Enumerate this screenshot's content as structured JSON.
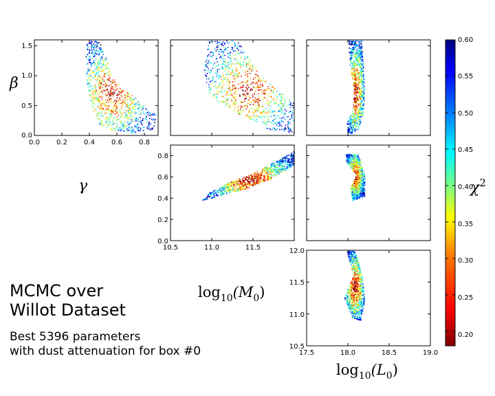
{
  "title_lines": [
    "MCMC over",
    "Willot Dataset"
  ],
  "subtitle_lines": [
    "Best 5396 parameters",
    "with dust attenuation for box #0"
  ],
  "chart_data": [
    {
      "type": "scatter",
      "panel": "beta_vs_gamma",
      "x_param": "gamma",
      "y_param": "beta",
      "xlim": [
        0.0,
        0.9
      ],
      "ylim": [
        0.0,
        1.6
      ],
      "xticks": [
        "0.0",
        "0.2",
        "0.4",
        "0.6",
        "0.8"
      ],
      "yticks": [
        "0.0",
        "0.5",
        "1.0",
        "1.5"
      ],
      "ylabel": "β",
      "xlabel": "γ",
      "cloud": {
        "path": [
          [
            0.38,
            1.6
          ],
          [
            0.47,
            1.6
          ],
          [
            0.52,
            1.3
          ],
          [
            0.56,
            1.0
          ],
          [
            0.62,
            0.85
          ],
          [
            0.75,
            0.6
          ],
          [
            0.88,
            0.35
          ],
          [
            0.87,
            0.1
          ],
          [
            0.72,
            0.05
          ],
          [
            0.55,
            0.1
          ],
          [
            0.47,
            0.2
          ],
          [
            0.42,
            0.45
          ],
          [
            0.38,
            0.8
          ],
          [
            0.37,
            1.2
          ]
        ]
      },
      "approx_points": 5396
    },
    {
      "type": "scatter",
      "panel": "beta_vs_log10M0",
      "x_param": "log10_M0",
      "y_param": "beta",
      "xlim": [
        10.5,
        12.0
      ],
      "ylim": [
        0.0,
        1.6
      ],
      "cloud": {
        "path": [
          [
            10.95,
            1.6
          ],
          [
            11.3,
            1.6
          ],
          [
            11.6,
            1.0
          ],
          [
            11.8,
            0.75
          ],
          [
            12.0,
            0.55
          ],
          [
            12.0,
            0.05
          ],
          [
            11.7,
            0.1
          ],
          [
            11.4,
            0.3
          ],
          [
            11.2,
            0.45
          ],
          [
            10.95,
            0.7
          ],
          [
            10.9,
            1.1
          ]
        ]
      },
      "approx_points": 5396
    },
    {
      "type": "scatter",
      "panel": "beta_vs_log10L0",
      "x_param": "log10_L0",
      "y_param": "beta",
      "xlim": [
        17.5,
        19.0
      ],
      "ylim": [
        0.0,
        1.6
      ],
      "cloud": {
        "path": [
          [
            18.0,
            1.6
          ],
          [
            18.17,
            1.6
          ],
          [
            18.18,
            1.2
          ],
          [
            18.2,
            0.75
          ],
          [
            18.18,
            0.35
          ],
          [
            18.12,
            0.1
          ],
          [
            18.0,
            0.0
          ],
          [
            17.98,
            0.2
          ],
          [
            18.06,
            0.45
          ],
          [
            18.07,
            0.8
          ],
          [
            18.02,
            1.2
          ]
        ]
      },
      "approx_points": 5396
    },
    {
      "type": "scatter",
      "panel": "gamma_vs_log10M0",
      "x_param": "log10_M0",
      "y_param": "gamma",
      "xlim": [
        10.5,
        12.0
      ],
      "ylim": [
        0.0,
        0.9
      ],
      "xticks": [
        "10.5",
        "11.0",
        "11.5"
      ],
      "yticks": [
        "0.0",
        "0.2",
        "0.4",
        "0.6",
        "0.8"
      ],
      "xlabel": "log10(M0)",
      "cloud": {
        "path": [
          [
            10.88,
            0.38
          ],
          [
            11.1,
            0.43
          ],
          [
            11.4,
            0.49
          ],
          [
            11.7,
            0.58
          ],
          [
            12.0,
            0.72
          ],
          [
            12.0,
            0.85
          ],
          [
            11.8,
            0.76
          ],
          [
            11.5,
            0.64
          ],
          [
            11.2,
            0.55
          ],
          [
            10.95,
            0.45
          ]
        ]
      },
      "approx_points": 5396
    },
    {
      "type": "scatter",
      "panel": "gamma_vs_log10L0",
      "x_param": "log10_L0",
      "y_param": "gamma",
      "xlim": [
        17.5,
        19.0
      ],
      "ylim": [
        0.0,
        0.9
      ],
      "cloud": {
        "path": [
          [
            17.97,
            0.82
          ],
          [
            18.12,
            0.82
          ],
          [
            18.2,
            0.62
          ],
          [
            18.2,
            0.42
          ],
          [
            18.05,
            0.38
          ],
          [
            18.03,
            0.5
          ],
          [
            18.1,
            0.62
          ],
          [
            17.98,
            0.74
          ]
        ]
      },
      "approx_points": 5396
    },
    {
      "type": "scatter",
      "panel": "log10M0_vs_log10L0",
      "x_param": "log10_L0",
      "y_param": "log10_M0",
      "xlim": [
        17.5,
        19.0
      ],
      "ylim": [
        10.5,
        12.0
      ],
      "xticks": [
        "17.5",
        "18.0",
        "18.5",
        "19.0"
      ],
      "yticks": [
        "10.5",
        "11.0",
        "11.5",
        "12.0"
      ],
      "xlabel": "log10(L0)",
      "cloud": {
        "path": [
          [
            17.98,
            12.0
          ],
          [
            18.08,
            12.0
          ],
          [
            18.17,
            11.6
          ],
          [
            18.2,
            11.2
          ],
          [
            18.15,
            10.9
          ],
          [
            18.05,
            10.95
          ],
          [
            17.95,
            11.25
          ],
          [
            18.06,
            11.6
          ]
        ]
      },
      "approx_points": 5396
    }
  ],
  "colorbar": {
    "label": "χ",
    "label_exp": "2",
    "min": 0.18,
    "max": 0.6,
    "ticks": [
      "0.20",
      "0.25",
      "0.30",
      "0.35",
      "0.40",
      "0.45",
      "0.50",
      "0.55",
      "0.60"
    ],
    "colormap": "jet",
    "stops": [
      "#7f0000",
      "#ff0000",
      "#ff7f00",
      "#ffff00",
      "#7fff7f",
      "#00ffff",
      "#007fff",
      "#0000ff",
      "#00007f"
    ]
  },
  "axis_labels": {
    "beta": "β",
    "gamma": "γ",
    "log10M0": "log",
    "log10M0_sub": "10",
    "log10M0_var": "(M",
    "log10M0_var_sub": "0",
    "log10L0": "log",
    "log10L0_sub": "10",
    "log10L0_var": "(L",
    "log10L0_var_sub": "0"
  }
}
